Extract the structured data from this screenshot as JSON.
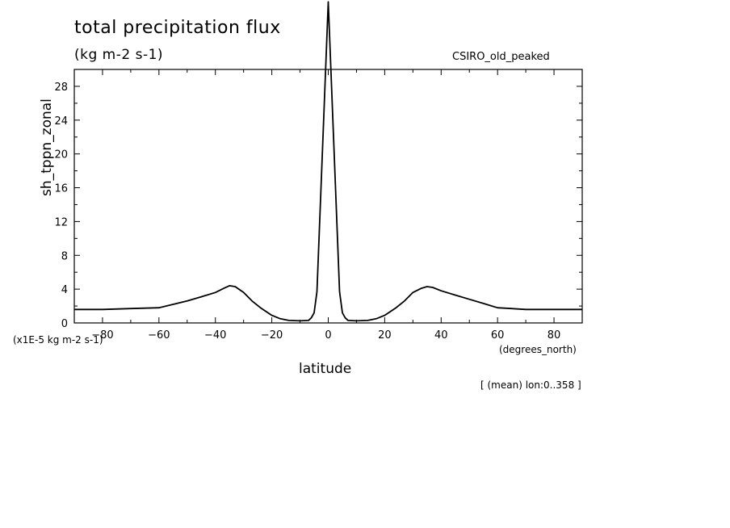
{
  "chart_data": {
    "type": "line",
    "title": "total precipitation flux",
    "subtitle": "(kg m-2 s-1)",
    "source": "CSIRO_old_peaked",
    "ylabel": "sh_tppn_zonal",
    "xlabel": "latitude",
    "y_unit": "(x1E-5 kg m-2 s-1)",
    "x_unit": "(degrees_north)",
    "footnote": "[ (mean) lon:0..358 ]",
    "xlim": [
      -90,
      90
    ],
    "ylim": [
      0,
      30
    ],
    "x_ticks": [
      -80,
      -60,
      -40,
      -20,
      0,
      20,
      40,
      60,
      80
    ],
    "y_ticks": [
      0,
      4,
      8,
      12,
      16,
      20,
      24,
      28
    ],
    "grid": false,
    "series": [
      {
        "x": [
          -90,
          -80,
          -70,
          -60,
          -55,
          -50,
          -45,
          -40,
          -37,
          -35,
          -33,
          -30,
          -27,
          -24,
          -20,
          -17,
          -14,
          -10,
          -7,
          -6,
          -5,
          -4,
          0,
          4,
          5,
          6,
          7,
          10,
          14,
          17,
          20,
          24,
          27,
          30,
          33,
          35,
          37,
          40,
          45,
          50,
          55,
          60,
          65,
          70,
          80,
          90
        ],
        "y": [
          1.6,
          1.6,
          1.7,
          1.8,
          2.2,
          2.6,
          3.1,
          3.6,
          4.1,
          4.4,
          4.3,
          3.6,
          2.6,
          1.8,
          0.9,
          0.5,
          0.3,
          0.25,
          0.3,
          0.6,
          1.2,
          3.7,
          38,
          3.7,
          1.2,
          0.6,
          0.3,
          0.25,
          0.3,
          0.5,
          0.9,
          1.8,
          2.6,
          3.6,
          4.1,
          4.3,
          4.2,
          3.8,
          3.3,
          2.8,
          2.3,
          1.8,
          1.7,
          1.6,
          1.6,
          1.6
        ],
        "color": "#000000"
      }
    ]
  }
}
